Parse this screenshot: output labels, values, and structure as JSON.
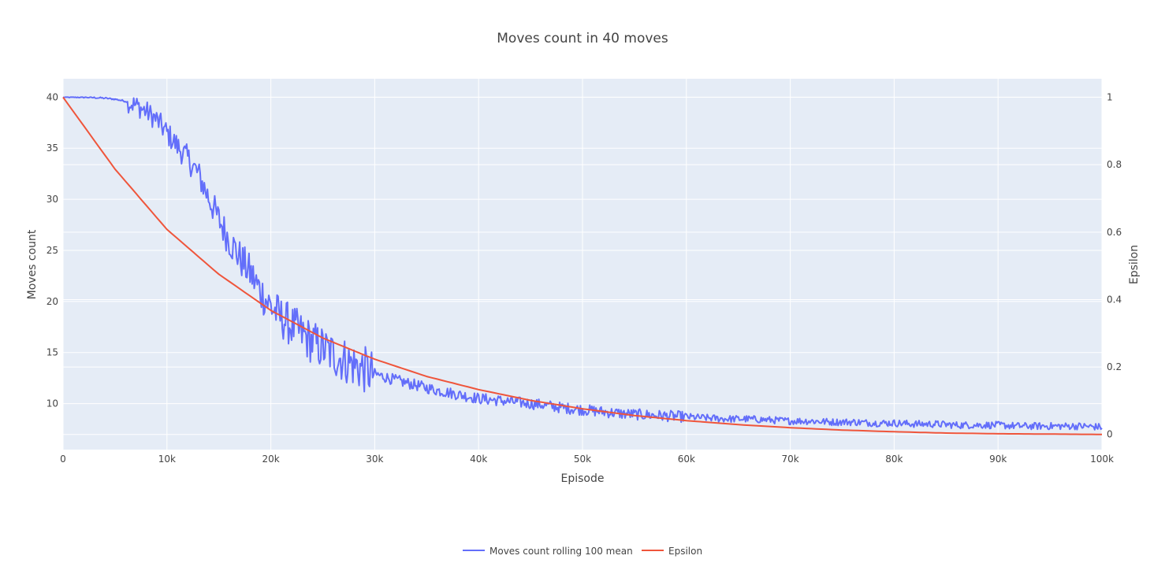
{
  "chart_data": {
    "type": "line",
    "title": "Moves count in 40 moves",
    "xlabel": "Episode",
    "ylabel": "Moves count",
    "y2label": "Epsilon",
    "xlim": [
      0,
      100000
    ],
    "ylim": [
      5.5,
      41.8
    ],
    "y2lim": [
      -0.045,
      1.055
    ],
    "x_ticks": [
      {
        "value": 0,
        "label": "0"
      },
      {
        "value": 10000,
        "label": "10k"
      },
      {
        "value": 20000,
        "label": "20k"
      },
      {
        "value": 30000,
        "label": "30k"
      },
      {
        "value": 40000,
        "label": "40k"
      },
      {
        "value": 50000,
        "label": "50k"
      },
      {
        "value": 60000,
        "label": "60k"
      },
      {
        "value": 70000,
        "label": "70k"
      },
      {
        "value": 80000,
        "label": "80k"
      },
      {
        "value": 90000,
        "label": "90k"
      },
      {
        "value": 100000,
        "label": "100k"
      }
    ],
    "y_ticks": [
      {
        "value": 10,
        "label": "10"
      },
      {
        "value": 15,
        "label": "15"
      },
      {
        "value": 20,
        "label": "20"
      },
      {
        "value": 25,
        "label": "25"
      },
      {
        "value": 30,
        "label": "30"
      },
      {
        "value": 35,
        "label": "35"
      },
      {
        "value": 40,
        "label": "40"
      }
    ],
    "y2_ticks": [
      {
        "value": 0,
        "label": "0"
      },
      {
        "value": 0.2,
        "label": "0.2"
      },
      {
        "value": 0.4,
        "label": "0.4"
      },
      {
        "value": 0.6,
        "label": "0.6"
      },
      {
        "value": 0.8,
        "label": "0.8"
      },
      {
        "value": 1,
        "label": "1"
      }
    ],
    "grid": true,
    "legend_position": "bottom-center",
    "background_color": "#e5ecf6",
    "series": [
      {
        "name": "Moves count rolling 100 mean",
        "axis": "y",
        "color": "#636efa",
        "x": [
          0,
          2000,
          4000,
          5000,
          6000,
          7000,
          8000,
          9000,
          10000,
          11000,
          12000,
          13000,
          14000,
          15000,
          16000,
          17000,
          18000,
          19000,
          20000,
          21000,
          22000,
          23000,
          24000,
          25000,
          26000,
          27000,
          28000,
          29000,
          30000,
          32000,
          34000,
          36000,
          38000,
          40000,
          42000,
          44000,
          46000,
          48000,
          50000,
          52000,
          54000,
          56000,
          58000,
          60000,
          62000,
          64000,
          66000,
          68000,
          70000,
          72000,
          74000,
          76000,
          78000,
          80000,
          82000,
          84000,
          86000,
          88000,
          90000,
          92000,
          94000,
          96000,
          98000,
          100000
        ],
        "y": [
          40,
          40,
          39.9,
          39.8,
          39.6,
          39.2,
          38.6,
          37.8,
          36.5,
          35.2,
          34.0,
          32.5,
          30.2,
          28.0,
          26.0,
          24.3,
          22.8,
          21.0,
          19.5,
          18.4,
          17.6,
          16.8,
          16.0,
          15.4,
          14.8,
          14.3,
          13.8,
          13.3,
          12.9,
          12.3,
          11.8,
          11.3,
          10.9,
          10.5,
          10.3,
          10.1,
          9.9,
          9.6,
          9.4,
          9.2,
          9.0,
          8.9,
          8.8,
          8.7,
          8.6,
          8.5,
          8.5,
          8.4,
          8.3,
          8.3,
          8.2,
          8.2,
          8.1,
          8.1,
          8.0,
          8.0,
          7.9,
          7.9,
          7.9,
          7.8,
          7.8,
          7.8,
          7.8,
          7.7
        ]
      },
      {
        "name": "Epsilon",
        "axis": "y2",
        "color": "#ef553b",
        "x": [
          0,
          5000,
          10000,
          15000,
          20000,
          25000,
          30000,
          35000,
          40000,
          45000,
          50000,
          55000,
          60000,
          65000,
          70000,
          75000,
          80000,
          85000,
          90000,
          95000,
          100000
        ],
        "y": [
          1.0,
          0.787,
          0.608,
          0.475,
          0.368,
          0.286,
          0.223,
          0.172,
          0.133,
          0.101,
          0.076,
          0.056,
          0.041,
          0.029,
          0.02,
          0.013,
          0.008,
          0.004,
          0.002,
          0.001,
          0.0
        ]
      }
    ]
  }
}
